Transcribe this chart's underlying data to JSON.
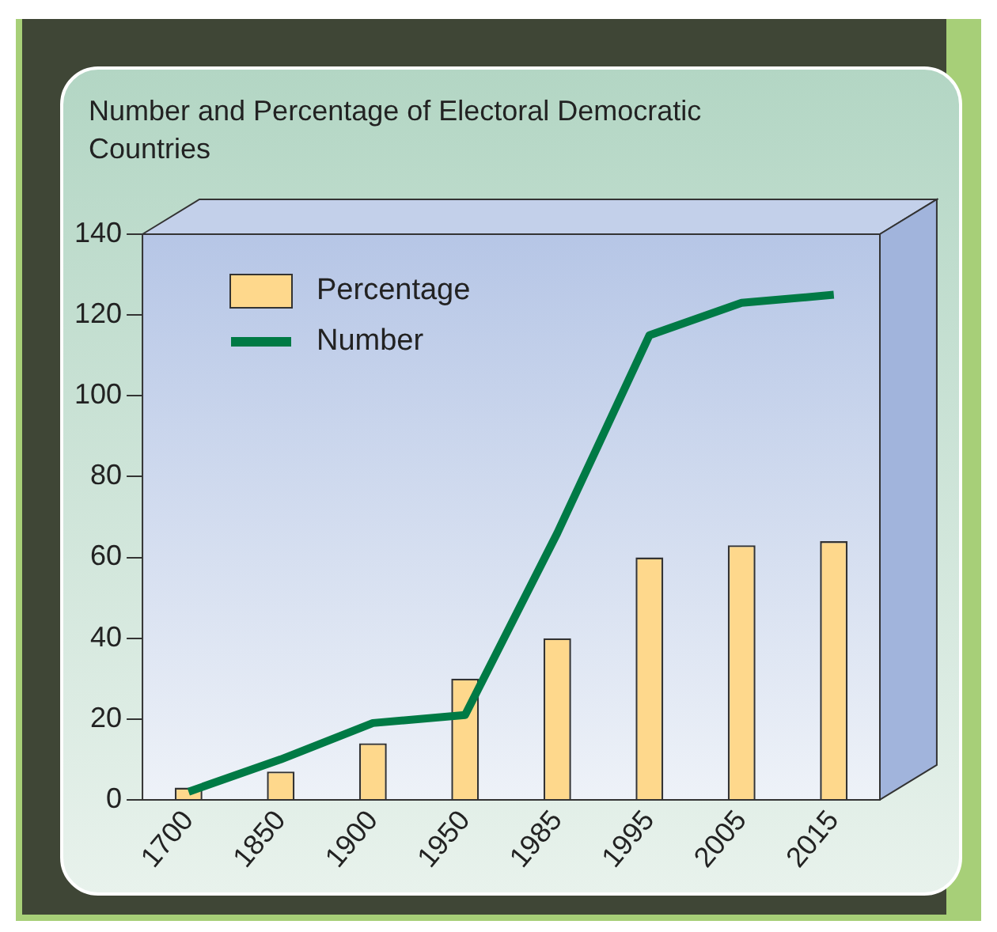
{
  "chart_data": {
    "type": "bar",
    "title": "Number and Percentage of Electoral Democratic Countries",
    "categories": [
      "1700",
      "1850",
      "1900",
      "1950",
      "1985",
      "1995",
      "2005",
      "2015"
    ],
    "series": [
      {
        "name": "Percentage",
        "color": "#fed88c",
        "values": [
          3,
          7,
          14,
          30,
          40,
          60,
          63,
          64
        ]
      },
      {
        "name": "Number",
        "type": "line",
        "color": "#007a45",
        "values": [
          2,
          10,
          19,
          21,
          66,
          115,
          123,
          125
        ]
      }
    ],
    "ylim": [
      0,
      140
    ],
    "yticks": [
      0,
      20,
      40,
      60,
      80,
      100,
      120,
      140
    ],
    "grid": false,
    "legend": "top left",
    "marker": "none"
  }
}
